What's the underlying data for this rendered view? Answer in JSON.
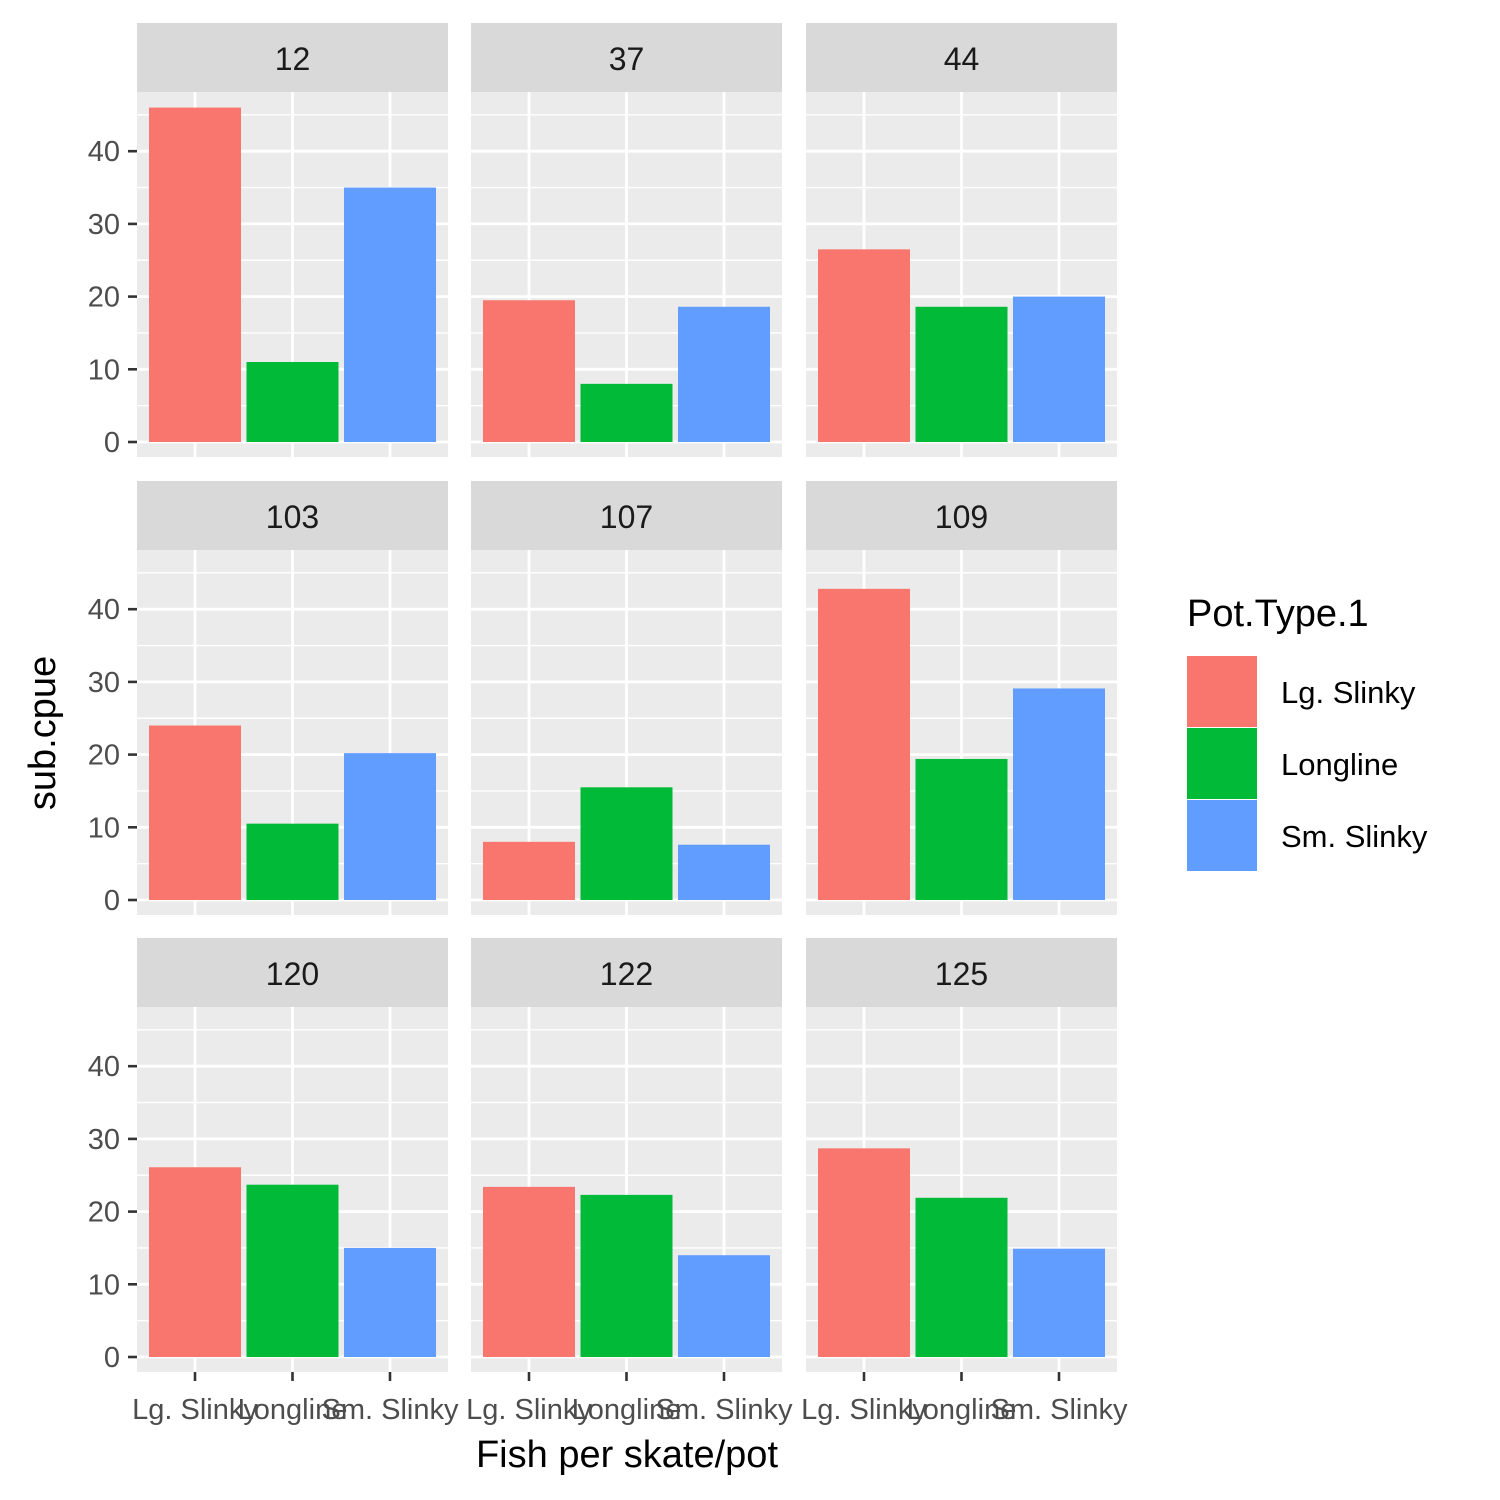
{
  "chart_data": {
    "type": "bar",
    "facet_variable": "Station",
    "categories": [
      "Lg. Slinky",
      "Longline",
      "Sm. Slinky"
    ],
    "xlabel": "Fish per skate/pot",
    "ylabel": "sub.cpue",
    "ylim": [
      0,
      48
    ],
    "yticks": [
      0,
      10,
      20,
      30,
      40
    ],
    "legend": {
      "title": "Pot.Type.1",
      "placement": "right",
      "entries": [
        {
          "label": "Lg. Slinky",
          "color": "#F8766D"
        },
        {
          "label": "Longline",
          "color": "#00BA38"
        },
        {
          "label": "Sm. Slinky",
          "color": "#619CFF"
        }
      ]
    },
    "panels": [
      {
        "label": "12",
        "values": [
          46.0,
          11.0,
          35.0
        ]
      },
      {
        "label": "37",
        "values": [
          19.5,
          8.0,
          18.6
        ]
      },
      {
        "label": "44",
        "values": [
          26.5,
          18.6,
          20.0
        ]
      },
      {
        "label": "103",
        "values": [
          24.0,
          10.5,
          20.2
        ]
      },
      {
        "label": "107",
        "values": [
          8.0,
          15.5,
          7.6
        ]
      },
      {
        "label": "109",
        "values": [
          42.8,
          19.4,
          29.1
        ]
      },
      {
        "label": "120",
        "values": [
          26.1,
          23.7,
          15.0
        ]
      },
      {
        "label": "122",
        "values": [
          23.4,
          22.3,
          14.0
        ]
      },
      {
        "label": "125",
        "values": [
          28.7,
          21.9,
          14.9
        ]
      }
    ],
    "grid": true
  }
}
